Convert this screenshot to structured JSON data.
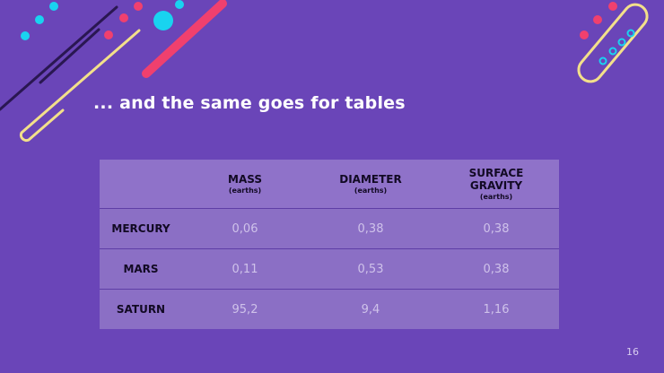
{
  "slide": {
    "title": "... and the same goes for tables",
    "page_number": "16"
  },
  "table": {
    "columns": [
      {
        "label": "",
        "unit": ""
      },
      {
        "label": "MASS",
        "unit": "(earths)"
      },
      {
        "label": "DIAMETER",
        "unit": "(earths)"
      },
      {
        "label": "SURFACE GRAVITY",
        "unit": "(earths)"
      }
    ],
    "rows": [
      {
        "name": "MERCURY",
        "mass": "0,06",
        "diameter": "0,38",
        "gravity": "0,38"
      },
      {
        "name": "MARS",
        "mass": "0,11",
        "diameter": "0,53",
        "gravity": "0,38"
      },
      {
        "name": "SATURN",
        "mass": "95,2",
        "diameter": "9,4",
        "gravity": "1,16"
      }
    ]
  },
  "colors": {
    "background": "#6a45b8",
    "header_fill": "#8f72c9",
    "row_fill": "#8b6fc5",
    "accent_pink": "#f0406e",
    "accent_cyan": "#19d3f0",
    "accent_yellow": "#f3e08a"
  }
}
